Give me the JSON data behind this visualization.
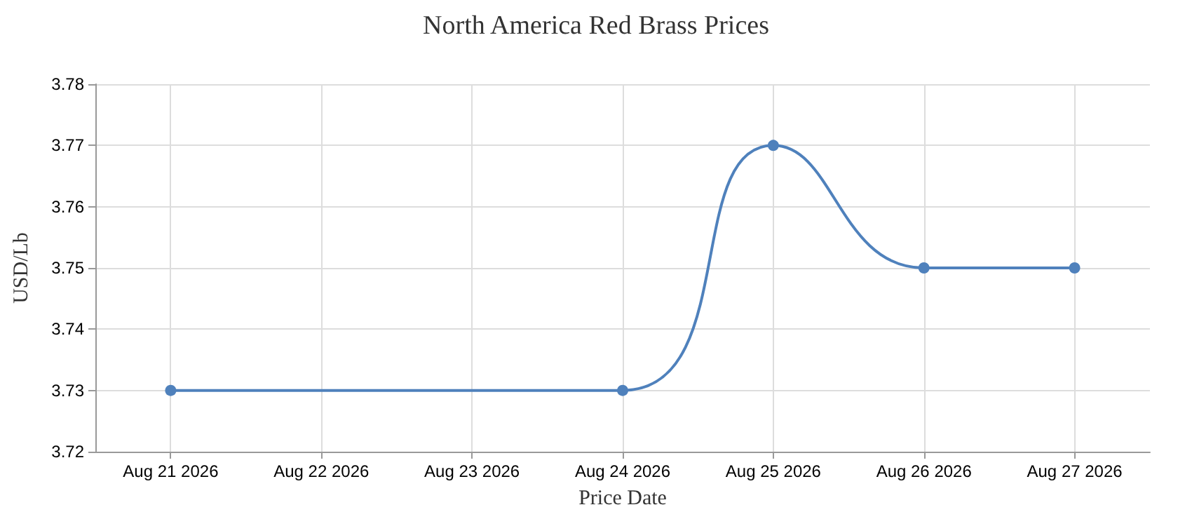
{
  "chart_data": {
    "type": "line",
    "title": "North America Red Brass Prices",
    "xlabel": "Price Date",
    "ylabel": "USD/Lb",
    "x": [
      "2026-08-21",
      "2026-08-24",
      "2026-08-25",
      "2026-08-26",
      "2026-08-27"
    ],
    "series": [
      {
        "color": "#4f81bc",
        "values": [
          3.73,
          3.73,
          3.77,
          3.75,
          3.75
        ]
      }
    ],
    "xlim": [
      "2026-08-20T12:00",
      "2026-08-27T12:00"
    ],
    "xticks": [
      {
        "value": "2026-08-21",
        "label": "Aug 21 2026"
      },
      {
        "value": "2026-08-22",
        "label": "Aug 22 2026"
      },
      {
        "value": "2026-08-23",
        "label": "Aug 23 2026"
      },
      {
        "value": "2026-08-24",
        "label": "Aug 24 2026"
      },
      {
        "value": "2026-08-25",
        "label": "Aug 25 2026"
      },
      {
        "value": "2026-08-26",
        "label": "Aug 26 2026"
      },
      {
        "value": "2026-08-27",
        "label": "Aug 27 2026"
      }
    ],
    "ylim": [
      3.72,
      3.78
    ],
    "yticks": [
      3.72,
      3.73,
      3.74,
      3.75,
      3.76,
      3.77,
      3.78
    ],
    "grid": true,
    "marker": "circle",
    "line_style": "solid"
  }
}
